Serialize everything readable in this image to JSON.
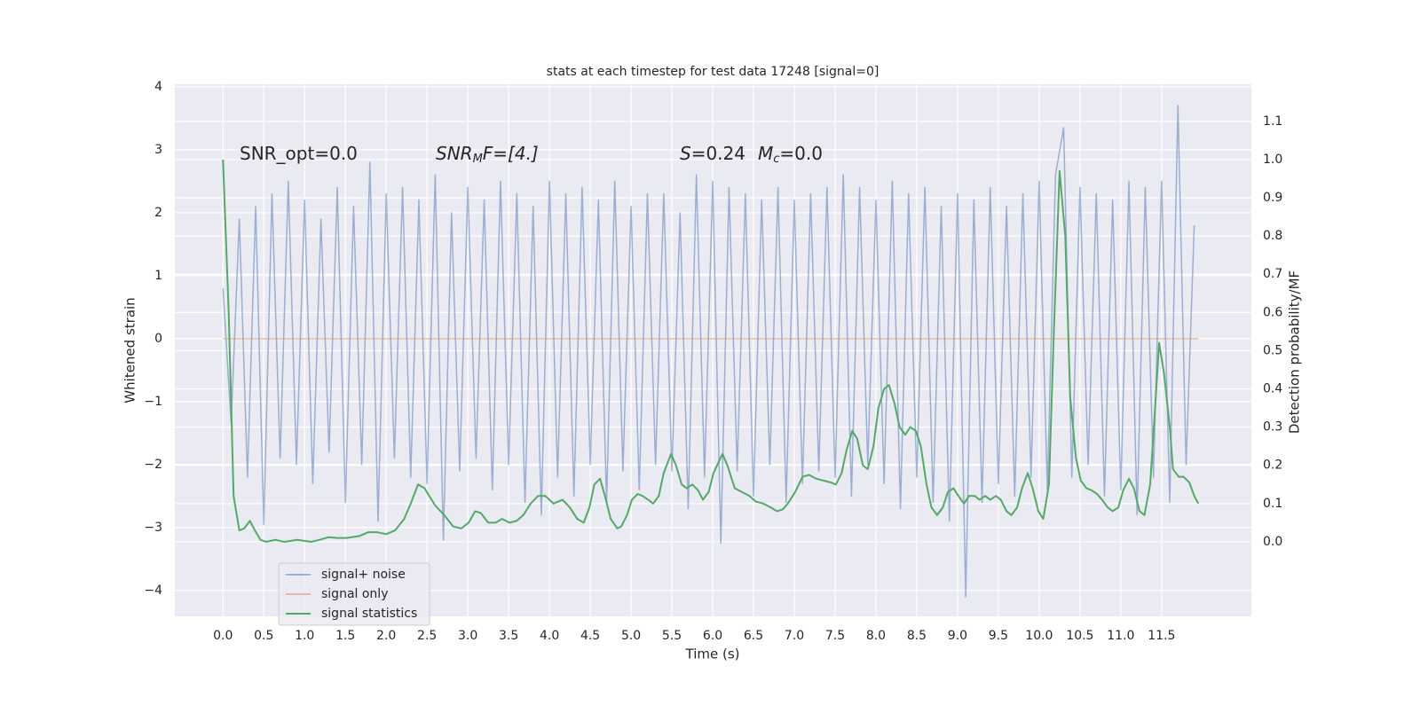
{
  "chart_data": {
    "type": "line",
    "title": "stats at each timestep for test data 17248 [signal=0]",
    "xlabel": "Time (s)",
    "ylabel": "Whitened strain",
    "y2label": "Detection probability/MF",
    "annotations": [
      [
        "SNR_opt=0.0"
      ],
      [
        "SNR",
        "M",
        "F=[4.]"
      ],
      [
        "S",
        "=0.24",
        "M",
        "c",
        "=0.0"
      ]
    ],
    "xlim": [
      -0.59,
      12.6
    ],
    "ylim": [
      -4.41,
      4.04
    ],
    "y2lim": [
      -0.195,
      1.197
    ],
    "xticks": [
      {
        "value": 0,
        "label": "0.0"
      },
      {
        "value": 0.5,
        "label": "0.5"
      },
      {
        "value": 1,
        "label": "1.0"
      },
      {
        "value": 1.5,
        "label": "1.5"
      },
      {
        "value": 2,
        "label": "2.0"
      },
      {
        "value": 2.5,
        "label": "2.5"
      },
      {
        "value": 3,
        "label": "3.0"
      },
      {
        "value": 3.5,
        "label": "3.5"
      },
      {
        "value": 4,
        "label": "4.0"
      },
      {
        "value": 4.5,
        "label": "4.5"
      },
      {
        "value": 5,
        "label": "5.0"
      },
      {
        "value": 5.5,
        "label": "5.5"
      },
      {
        "value": 6,
        "label": "6.0"
      },
      {
        "value": 6.5,
        "label": "6.5"
      },
      {
        "value": 7,
        "label": "7.0"
      },
      {
        "value": 7.5,
        "label": "7.5"
      },
      {
        "value": 8,
        "label": "8.0"
      },
      {
        "value": 8.5,
        "label": "8.5"
      },
      {
        "value": 9,
        "label": "9.0"
      },
      {
        "value": 9.5,
        "label": "9.5"
      },
      {
        "value": 10,
        "label": "10.0"
      },
      {
        "value": 10.5,
        "label": "10.5"
      },
      {
        "value": 11,
        "label": "11.0"
      },
      {
        "value": 11.5,
        "label": "11.5"
      }
    ],
    "yticks": [
      {
        "value": -4,
        "label": "−4"
      },
      {
        "value": -3,
        "label": "−3"
      },
      {
        "value": -2,
        "label": "−2"
      },
      {
        "value": -1,
        "label": "−1"
      },
      0,
      1,
      2,
      3,
      4
    ],
    "y2ticks": [
      {
        "value": 0,
        "label": "0.0"
      },
      {
        "value": 0.1,
        "label": "0.1"
      },
      {
        "value": 0.2,
        "label": "0.2"
      },
      {
        "value": 0.3,
        "label": "0.3"
      },
      {
        "value": 0.4,
        "label": "0.4"
      },
      {
        "value": 0.5,
        "label": "0.5"
      },
      {
        "value": 0.6,
        "label": "0.6"
      },
      {
        "value": 0.7,
        "label": "0.7"
      },
      {
        "value": 0.8,
        "label": "0.8"
      },
      {
        "value": 0.9,
        "label": "0.9"
      },
      {
        "value": 1,
        "label": "1.0"
      },
      {
        "value": 1.1,
        "label": "1.1"
      }
    ],
    "grid": true,
    "series": [
      {
        "name": "signal+ noise",
        "color": "#4c72b0",
        "alpha": 0.5,
        "x": [
          0,
          0.1,
          0.2,
          0.3,
          0.4,
          0.5,
          0.6,
          0.7,
          0.8,
          0.9,
          1,
          1.1,
          1.2,
          1.3,
          1.4,
          1.5,
          1.6,
          1.7,
          1.8,
          1.9,
          2,
          2.1,
          2.2,
          2.3,
          2.4,
          2.5,
          2.6,
          2.7,
          2.8,
          2.9,
          3,
          3.1,
          3.2,
          3.3,
          3.4,
          3.5,
          3.6,
          3.7,
          3.8,
          3.9,
          4,
          4.1,
          4.2,
          4.3,
          4.4,
          4.5,
          4.6,
          4.7,
          4.8,
          4.9,
          5,
          5.1,
          5.2,
          5.3,
          5.4,
          5.5,
          5.6,
          5.7,
          5.8,
          5.9,
          6,
          6.1,
          6.2,
          6.3,
          6.4,
          6.5,
          6.6,
          6.7,
          6.8,
          6.9,
          7,
          7.1,
          7.2,
          7.3,
          7.4,
          7.5,
          7.6,
          7.7,
          7.8,
          7.9,
          8,
          8.1,
          8.2,
          8.3,
          8.4,
          8.5,
          8.6,
          8.7,
          8.8,
          8.9,
          9,
          9.1,
          9.2,
          9.3,
          9.4,
          9.5,
          9.6,
          9.7,
          9.8,
          9.9,
          10,
          10.1,
          10.2,
          10.3,
          10.4,
          10.5,
          10.6,
          10.7,
          10.8,
          10.9,
          11,
          11.1,
          11.2,
          11.3,
          11.4,
          11.5,
          11.6,
          11.7,
          11.8,
          11.9
        ],
        "values": [
          0.8,
          -1.35,
          1.9,
          -2.2,
          2.1,
          -2.95,
          2.3,
          -1.9,
          2.5,
          -2.0,
          2.2,
          -2.3,
          1.9,
          -1.8,
          2.4,
          -2.6,
          2.1,
          -2.0,
          2.8,
          -2.9,
          2.3,
          -1.9,
          2.4,
          -2.2,
          2.2,
          -2.3,
          2.6,
          -3.2,
          2.0,
          -2.1,
          2.4,
          -1.9,
          2.2,
          -2.4,
          2.5,
          -2.0,
          2.3,
          -2.6,
          2.1,
          -2.8,
          2.5,
          -2.2,
          2.3,
          -2.5,
          2.4,
          -2.0,
          2.2,
          -2.6,
          2.5,
          -2.1,
          2.1,
          -2.4,
          2.3,
          -2.0,
          2.3,
          -2.1,
          2.0,
          -2.7,
          2.6,
          -2.2,
          2.5,
          -3.25,
          2.4,
          -2.1,
          2.3,
          -2.5,
          2.2,
          -2.0,
          2.4,
          -2.6,
          2.2,
          -2.3,
          2.3,
          -2.1,
          2.4,
          -2.2,
          2.6,
          -2.5,
          2.4,
          -2.0,
          2.2,
          -2.3,
          2.5,
          -2.7,
          2.3,
          -2.2,
          2.4,
          -2.6,
          2.1,
          -2.9,
          2.3,
          -4.1,
          2.2,
          -2.6,
          2.4,
          -2.3,
          2.1,
          -2.5,
          2.3,
          -2.2,
          2.5,
          -2.4,
          2.6,
          3.35,
          -2.2,
          2.4,
          -2.0,
          2.3,
          -2.5,
          2.2,
          -2.4,
          2.5,
          -2.8,
          2.4,
          -2.2,
          2.5,
          -2.6,
          3.7,
          -2.0,
          1.8
        ]
      },
      {
        "name": "signal only",
        "color": "#dd8452",
        "alpha": 0.5,
        "x": [
          0,
          11.95
        ],
        "values": [
          0,
          0
        ]
      },
      {
        "name": "signal statistics",
        "color": "#55a868",
        "axis": "y2",
        "x": [
          0,
          0.07,
          0.13,
          0.2,
          0.26,
          0.33,
          0.39,
          0.46,
          0.53,
          0.64,
          0.75,
          0.91,
          1.08,
          1.18,
          1.29,
          1.4,
          1.51,
          1.67,
          1.78,
          1.89,
          2.0,
          2.11,
          2.22,
          2.3,
          2.39,
          2.47,
          2.6,
          2.71,
          2.82,
          2.92,
          3.01,
          3.09,
          3.16,
          3.25,
          3.34,
          3.42,
          3.51,
          3.6,
          3.68,
          3.77,
          3.86,
          3.95,
          4.05,
          4.16,
          4.25,
          4.34,
          4.42,
          4.49,
          4.55,
          4.62,
          4.68,
          4.75,
          4.83,
          4.88,
          4.95,
          5.01,
          5.08,
          5.14,
          5.21,
          5.27,
          5.34,
          5.4,
          5.49,
          5.55,
          5.62,
          5.68,
          5.75,
          5.82,
          5.88,
          5.95,
          6.01,
          6.12,
          6.18,
          6.27,
          6.36,
          6.45,
          6.53,
          6.62,
          6.71,
          6.79,
          6.86,
          6.92,
          7.01,
          7.1,
          7.18,
          7.27,
          7.36,
          7.45,
          7.51,
          7.58,
          7.64,
          7.71,
          7.77,
          7.84,
          7.9,
          7.97,
          8.03,
          8.1,
          8.16,
          8.23,
          8.29,
          8.36,
          8.42,
          8.49,
          8.55,
          8.62,
          8.68,
          8.75,
          8.82,
          8.88,
          8.95,
          9.01,
          9.08,
          9.14,
          9.21,
          9.27,
          9.34,
          9.4,
          9.47,
          9.53,
          9.6,
          9.66,
          9.73,
          9.79,
          9.86,
          9.92,
          9.99,
          10.05,
          10.12,
          10.18,
          10.25,
          10.32,
          10.38,
          10.45,
          10.51,
          10.58,
          10.64,
          10.71,
          10.77,
          10.84,
          10.9,
          10.97,
          11.03,
          11.1,
          11.16,
          11.23,
          11.29,
          11.36,
          11.42,
          11.47,
          11.53,
          11.6,
          11.64,
          11.71,
          11.77,
          11.84,
          11.9,
          11.95
        ],
        "values": [
          1.0,
          0.6,
          0.12,
          0.03,
          0.035,
          0.055,
          0.03,
          0.005,
          0.0,
          0.005,
          0.0,
          0.005,
          0.0,
          0.005,
          0.012,
          0.01,
          0.01,
          0.015,
          0.025,
          0.025,
          0.02,
          0.03,
          0.06,
          0.1,
          0.15,
          0.14,
          0.095,
          0.07,
          0.04,
          0.035,
          0.05,
          0.08,
          0.075,
          0.05,
          0.05,
          0.06,
          0.05,
          0.055,
          0.07,
          0.1,
          0.12,
          0.12,
          0.1,
          0.11,
          0.09,
          0.06,
          0.05,
          0.09,
          0.15,
          0.165,
          0.12,
          0.06,
          0.035,
          0.04,
          0.07,
          0.11,
          0.125,
          0.12,
          0.11,
          0.1,
          0.12,
          0.18,
          0.23,
          0.2,
          0.15,
          0.14,
          0.15,
          0.135,
          0.11,
          0.13,
          0.18,
          0.23,
          0.2,
          0.14,
          0.13,
          0.12,
          0.105,
          0.1,
          0.09,
          0.08,
          0.085,
          0.1,
          0.13,
          0.17,
          0.175,
          0.165,
          0.16,
          0.155,
          0.15,
          0.18,
          0.24,
          0.29,
          0.27,
          0.2,
          0.19,
          0.25,
          0.35,
          0.4,
          0.41,
          0.36,
          0.3,
          0.28,
          0.3,
          0.29,
          0.25,
          0.15,
          0.09,
          0.07,
          0.09,
          0.13,
          0.14,
          0.12,
          0.1,
          0.12,
          0.12,
          0.11,
          0.12,
          0.11,
          0.12,
          0.11,
          0.08,
          0.07,
          0.09,
          0.14,
          0.18,
          0.14,
          0.08,
          0.06,
          0.15,
          0.55,
          0.97,
          0.8,
          0.38,
          0.22,
          0.16,
          0.14,
          0.135,
          0.125,
          0.11,
          0.09,
          0.08,
          0.09,
          0.135,
          0.165,
          0.14,
          0.08,
          0.07,
          0.15,
          0.35,
          0.52,
          0.44,
          0.3,
          0.19,
          0.17,
          0.17,
          0.155,
          0.12,
          0.1
        ]
      }
    ]
  }
}
